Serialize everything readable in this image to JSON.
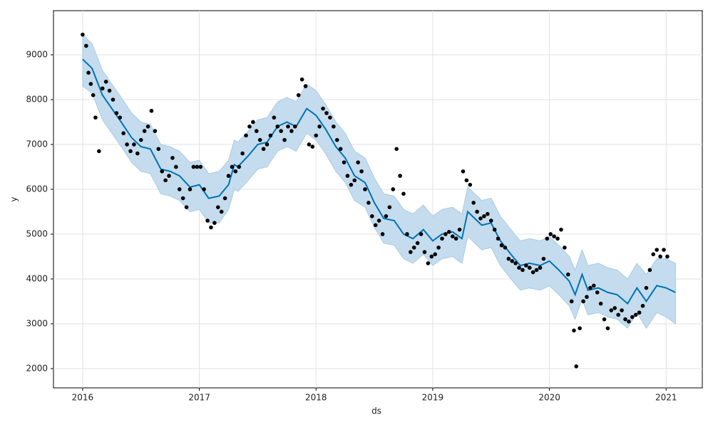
{
  "chart_data": {
    "type": "scatter",
    "x_label": "ds",
    "y_label": "y",
    "xlim": [
      2015.75,
      2021.31
    ],
    "ylim": [
      1571,
      9984
    ],
    "xticks": [
      2016,
      2017,
      2018,
      2019,
      2020,
      2021
    ],
    "yticks": [
      2000,
      3000,
      4000,
      5000,
      6000,
      7000,
      8000,
      9000
    ],
    "grid": true,
    "series": [
      {
        "type": "band",
        "color": "#c4dced",
        "x": [
          2016.0,
          2016.08,
          2016.17,
          2016.25,
          2016.33,
          2016.42,
          2016.5,
          2016.58,
          2016.67,
          2016.75,
          2016.83,
          2016.92,
          2017.0,
          2017.08,
          2017.17,
          2017.25,
          2017.3,
          2017.33,
          2017.42,
          2017.5,
          2017.58,
          2017.67,
          2017.75,
          2017.83,
          2017.92,
          2018.0,
          2018.08,
          2018.17,
          2018.25,
          2018.33,
          2018.42,
          2018.5,
          2018.58,
          2018.67,
          2018.75,
          2018.83,
          2018.92,
          2019.0,
          2019.08,
          2019.17,
          2019.25,
          2019.3,
          2019.42,
          2019.5,
          2019.58,
          2019.67,
          2019.75,
          2019.83,
          2019.92,
          2020.0,
          2020.08,
          2020.17,
          2020.22,
          2020.28,
          2020.33,
          2020.42,
          2020.5,
          2020.58,
          2020.67,
          2020.75,
          2020.83,
          2020.92,
          2021.0,
          2021.08
        ],
        "lower": [
          8300,
          8150,
          7550,
          7250,
          6950,
          6600,
          6400,
          6350,
          5900,
          5850,
          5750,
          5500,
          5550,
          5250,
          5250,
          5550,
          6000,
          5950,
          6200,
          6450,
          6500,
          6850,
          6950,
          6850,
          7250,
          7100,
          6800,
          6400,
          6150,
          5750,
          5600,
          5150,
          4800,
          4750,
          4450,
          4350,
          4550,
          4300,
          4450,
          4500,
          4350,
          4950,
          4650,
          4700,
          4300,
          4000,
          3750,
          3800,
          3750,
          3850,
          3650,
          3400,
          3100,
          3550,
          3200,
          3250,
          3150,
          3100,
          2900,
          3250,
          2900,
          3250,
          3150,
          3000
        ],
        "upper": [
          9450,
          9250,
          8650,
          8350,
          8050,
          7700,
          7500,
          7450,
          7000,
          6950,
          6850,
          6600,
          6650,
          6350,
          6400,
          6650,
          7100,
          7050,
          7300,
          7550,
          7600,
          7950,
          8050,
          7950,
          8350,
          8200,
          7900,
          7500,
          7250,
          6850,
          6700,
          6250,
          5900,
          5850,
          5550,
          5450,
          5650,
          5400,
          5550,
          5600,
          5450,
          6050,
          5750,
          5800,
          5400,
          5100,
          4850,
          4900,
          4850,
          4950,
          4750,
          4500,
          4200,
          4650,
          4300,
          4350,
          4250,
          4200,
          4000,
          4350,
          4100,
          4450,
          4450,
          4350
        ]
      },
      {
        "type": "line",
        "color": "#0072b2",
        "x": [
          2016.0,
          2016.08,
          2016.17,
          2016.25,
          2016.33,
          2016.42,
          2016.5,
          2016.58,
          2016.67,
          2016.75,
          2016.83,
          2016.92,
          2017.0,
          2017.08,
          2017.17,
          2017.25,
          2017.3,
          2017.33,
          2017.42,
          2017.5,
          2017.58,
          2017.67,
          2017.75,
          2017.83,
          2017.92,
          2018.0,
          2018.08,
          2018.17,
          2018.25,
          2018.33,
          2018.42,
          2018.5,
          2018.58,
          2018.67,
          2018.75,
          2018.83,
          2018.92,
          2019.0,
          2019.08,
          2019.17,
          2019.25,
          2019.3,
          2019.42,
          2019.5,
          2019.58,
          2019.67,
          2019.75,
          2019.83,
          2019.92,
          2020.0,
          2020.08,
          2020.17,
          2020.22,
          2020.28,
          2020.33,
          2020.42,
          2020.5,
          2020.58,
          2020.67,
          2020.75,
          2020.83,
          2020.92,
          2021.0,
          2021.08
        ],
        "values": [
          8900,
          8700,
          8100,
          7800,
          7500,
          7150,
          6950,
          6900,
          6450,
          6400,
          6300,
          6050,
          6100,
          5800,
          5850,
          6100,
          6550,
          6500,
          6750,
          7000,
          7050,
          7400,
          7500,
          7400,
          7800,
          7650,
          7350,
          6950,
          6700,
          6300,
          6150,
          5700,
          5350,
          5300,
          5000,
          4900,
          5100,
          4850,
          5000,
          5050,
          4900,
          5500,
          5200,
          5250,
          4850,
          4550,
          4300,
          4350,
          4300,
          4400,
          4200,
          3950,
          3650,
          4100,
          3750,
          3800,
          3700,
          3650,
          3450,
          3800,
          3500,
          3850,
          3800,
          3700
        ]
      },
      {
        "type": "scatter",
        "color": "#000000",
        "x": [
          2016.0,
          2016.03,
          2016.05,
          2016.07,
          2016.09,
          2016.11,
          2016.14,
          2016.17,
          2016.2,
          2016.23,
          2016.26,
          2016.29,
          2016.32,
          2016.35,
          2016.38,
          2016.41,
          2016.44,
          2016.47,
          2016.5,
          2016.53,
          2016.56,
          2016.59,
          2016.62,
          2016.65,
          2016.68,
          2016.71,
          2016.74,
          2016.77,
          2016.8,
          2016.83,
          2016.86,
          2016.89,
          2016.92,
          2016.95,
          2016.98,
          2017.01,
          2017.04,
          2017.07,
          2017.1,
          2017.13,
          2017.16,
          2017.19,
          2017.22,
          2017.25,
          2017.28,
          2017.31,
          2017.34,
          2017.37,
          2017.4,
          2017.43,
          2017.46,
          2017.49,
          2017.52,
          2017.55,
          2017.58,
          2017.61,
          2017.64,
          2017.67,
          2017.7,
          2017.73,
          2017.76,
          2017.79,
          2017.82,
          2017.85,
          2017.88,
          2017.91,
          2017.94,
          2017.97,
          2018.0,
          2018.03,
          2018.06,
          2018.09,
          2018.12,
          2018.15,
          2018.18,
          2018.21,
          2018.24,
          2018.27,
          2018.3,
          2018.33,
          2018.36,
          2018.39,
          2018.42,
          2018.45,
          2018.48,
          2018.51,
          2018.54,
          2018.57,
          2018.6,
          2018.63,
          2018.66,
          2018.69,
          2018.72,
          2018.75,
          2018.78,
          2018.81,
          2018.84,
          2018.87,
          2018.9,
          2018.93,
          2018.96,
          2018.99,
          2019.02,
          2019.05,
          2019.08,
          2019.11,
          2019.14,
          2019.17,
          2019.2,
          2019.23,
          2019.26,
          2019.29,
          2019.32,
          2019.35,
          2019.38,
          2019.41,
          2019.44,
          2019.47,
          2019.5,
          2019.53,
          2019.56,
          2019.59,
          2019.62,
          2019.65,
          2019.68,
          2019.71,
          2019.74,
          2019.77,
          2019.8,
          2019.83,
          2019.86,
          2019.89,
          2019.92,
          2019.95,
          2019.98,
          2020.01,
          2020.04,
          2020.07,
          2020.1,
          2020.13,
          2020.16,
          2020.19,
          2020.21,
          2020.23,
          2020.26,
          2020.29,
          2020.32,
          2020.35,
          2020.38,
          2020.41,
          2020.44,
          2020.47,
          2020.5,
          2020.53,
          2020.56,
          2020.59,
          2020.62,
          2020.65,
          2020.68,
          2020.71,
          2020.74,
          2020.77,
          2020.8,
          2020.83,
          2020.86,
          2020.89,
          2020.92,
          2020.95,
          2020.98,
          2021.01
        ],
        "values": [
          9450,
          9200,
          8600,
          8350,
          8100,
          7600,
          6850,
          8250,
          8400,
          8200,
          8000,
          7700,
          7600,
          7250,
          7000,
          6850,
          7000,
          6800,
          7100,
          7300,
          7400,
          7750,
          7300,
          6900,
          6400,
          6200,
          6300,
          6700,
          6500,
          6000,
          5800,
          5600,
          6000,
          6500,
          6500,
          6500,
          6000,
          5300,
          5150,
          5250,
          5600,
          5500,
          5800,
          6300,
          6500,
          6400,
          6500,
          6800,
          7200,
          7400,
          7500,
          7300,
          7100,
          6900,
          7000,
          7200,
          7600,
          7400,
          7300,
          7100,
          7400,
          7300,
          7400,
          8100,
          8450,
          8300,
          7000,
          6950,
          7200,
          7400,
          7800,
          7700,
          7600,
          7400,
          7100,
          6900,
          6600,
          6300,
          6100,
          6200,
          6600,
          6400,
          6000,
          5700,
          5400,
          5200,
          5300,
          5000,
          5400,
          5600,
          6000,
          6900,
          6300,
          5900,
          5000,
          4600,
          4700,
          4800,
          5000,
          4600,
          4350,
          4500,
          4550,
          4700,
          4900,
          5000,
          5050,
          4950,
          4900,
          5100,
          6400,
          6200,
          6100,
          5700,
          5500,
          5350,
          5400,
          5450,
          5300,
          5100,
          4900,
          4750,
          4700,
          4450,
          4400,
          4350,
          4250,
          4200,
          4300,
          4250,
          4150,
          4200,
          4250,
          4450,
          4900,
          5000,
          4950,
          4900,
          5100,
          4700,
          4100,
          3500,
          2850,
          2050,
          2900,
          3500,
          3600,
          3800,
          3850,
          3700,
          3450,
          3100,
          2900,
          3300,
          3350,
          3200,
          3300,
          3100,
          3050,
          3150,
          3200,
          3250,
          3400,
          3800,
          4200,
          4550,
          4650,
          4500,
          4650,
          4500
        ]
      }
    ]
  }
}
